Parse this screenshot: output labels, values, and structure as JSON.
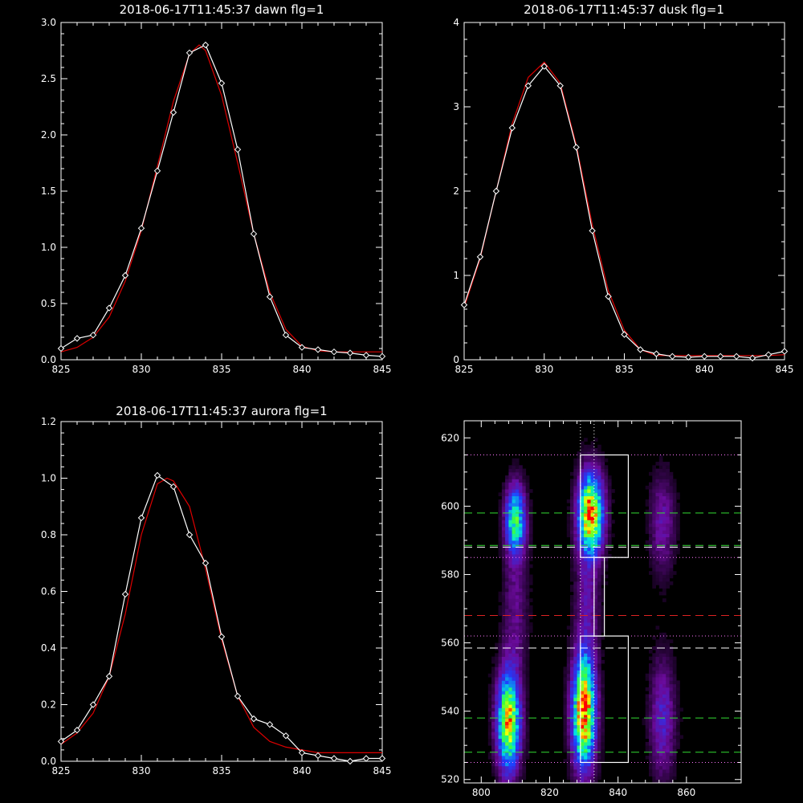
{
  "chart_data": [
    {
      "id": "dawn",
      "type": "line",
      "title": "2018-06-17T11:45:37 dawn flg=1",
      "xlim": [
        825,
        845
      ],
      "ylim": [
        0,
        3.0
      ],
      "xticks": [
        825,
        830,
        835,
        840,
        845
      ],
      "yticks": [
        "0.0",
        "0.5",
        "1.0",
        "1.5",
        "2.0",
        "2.5",
        "3.0"
      ],
      "series": [
        {
          "color": "#ffffff",
          "markers": true,
          "x": [
            825,
            826,
            827,
            828,
            829,
            830,
            831,
            832,
            833,
            834,
            835,
            836,
            837,
            838,
            839,
            840,
            841,
            842,
            843,
            844,
            845
          ],
          "y": [
            0.1,
            0.19,
            0.22,
            0.46,
            0.75,
            1.17,
            1.68,
            2.2,
            2.73,
            2.8,
            2.46,
            1.87,
            1.12,
            0.56,
            0.22,
            0.11,
            0.09,
            0.07,
            0.06,
            0.04,
            0.03
          ]
        },
        {
          "color": "#dd0000",
          "markers": false,
          "x": [
            825,
            826,
            827,
            828,
            829,
            830,
            831,
            832,
            833,
            833.6,
            834,
            835,
            836,
            837,
            838,
            839,
            840,
            841,
            842,
            843,
            844,
            845
          ],
          "y": [
            0.07,
            0.11,
            0.2,
            0.38,
            0.7,
            1.15,
            1.72,
            2.3,
            2.72,
            2.8,
            2.75,
            2.35,
            1.75,
            1.12,
            0.6,
            0.27,
            0.12,
            0.08,
            0.07,
            0.07,
            0.07,
            0.07
          ]
        }
      ]
    },
    {
      "id": "dusk",
      "type": "line",
      "title": "2018-06-17T11:45:37 dusk flg=1",
      "xlim": [
        825,
        845
      ],
      "ylim": [
        0,
        4
      ],
      "xticks": [
        825,
        830,
        835,
        840,
        845
      ],
      "yticks": [
        "0",
        "1",
        "2",
        "3",
        "4"
      ],
      "series": [
        {
          "color": "#ffffff",
          "markers": true,
          "x": [
            825,
            826,
            827,
            828,
            829,
            830,
            831,
            832,
            833,
            834,
            835,
            836,
            837,
            838,
            839,
            840,
            841,
            842,
            843,
            844,
            845
          ],
          "y": [
            0.65,
            1.22,
            2.0,
            2.75,
            3.25,
            3.48,
            3.25,
            2.52,
            1.53,
            0.75,
            0.3,
            0.12,
            0.07,
            0.04,
            0.03,
            0.04,
            0.04,
            0.04,
            0.02,
            0.06,
            0.1
          ]
        },
        {
          "color": "#dd0000",
          "markers": false,
          "x": [
            825,
            826,
            827,
            828,
            829,
            830,
            831,
            832,
            833,
            834,
            835,
            836,
            837,
            838,
            839,
            840,
            841,
            842,
            843,
            844,
            845
          ],
          "y": [
            0.62,
            1.2,
            2.0,
            2.8,
            3.35,
            3.53,
            3.28,
            2.55,
            1.6,
            0.82,
            0.35,
            0.12,
            0.05,
            0.05,
            0.05,
            0.05,
            0.05,
            0.05,
            0.05,
            0.05,
            0.06
          ]
        }
      ]
    },
    {
      "id": "aurora",
      "type": "line",
      "title": "2018-06-17T11:45:37 aurora flg=1",
      "xlim": [
        825,
        845
      ],
      "ylim": [
        0,
        1.2
      ],
      "xticks": [
        825,
        830,
        835,
        840,
        845
      ],
      "yticks": [
        "0.0",
        "0.2",
        "0.4",
        "0.6",
        "0.8",
        "1.0",
        "1.2"
      ],
      "series": [
        {
          "color": "#ffffff",
          "markers": true,
          "x": [
            825,
            826,
            827,
            828,
            829,
            830,
            831,
            832,
            833,
            834,
            835,
            836,
            837,
            838,
            839,
            840,
            841,
            842,
            843,
            844,
            845
          ],
          "y": [
            0.07,
            0.11,
            0.2,
            0.3,
            0.59,
            0.86,
            1.01,
            0.97,
            0.8,
            0.7,
            0.44,
            0.23,
            0.15,
            0.13,
            0.09,
            0.03,
            0.02,
            0.01,
            0.0,
            0.01,
            0.01
          ]
        },
        {
          "color": "#dd0000",
          "markers": false,
          "x": [
            825,
            826,
            827,
            828,
            829,
            830,
            831,
            831.6,
            832,
            833,
            834,
            835,
            836,
            837,
            838,
            839,
            840,
            841,
            842,
            843,
            844,
            845
          ],
          "y": [
            0.06,
            0.1,
            0.17,
            0.3,
            0.52,
            0.8,
            0.98,
            1.0,
            0.99,
            0.9,
            0.68,
            0.43,
            0.23,
            0.12,
            0.07,
            0.05,
            0.04,
            0.03,
            0.03,
            0.03,
            0.03,
            0.03
          ]
        }
      ]
    },
    {
      "id": "image",
      "type": "heatmap",
      "xlim": [
        795,
        876
      ],
      "ylim": [
        519,
        625
      ],
      "xticks": [
        800,
        820,
        840,
        860
      ],
      "yticks": [
        520,
        540,
        560,
        580,
        600,
        620
      ],
      "colors": {
        "low": "#000000",
        "purple": "#6a0a9a",
        "blue": "#1f3cff",
        "cyan": "#00e5e0",
        "green": "#3cff3c",
        "yellow": "#ffff00",
        "red": "#ff0000"
      },
      "blobs": [
        {
          "x": 810,
          "y": 596,
          "sx": 2.0,
          "sy": 7,
          "amp": 0.62
        },
        {
          "x": 808,
          "y": 537,
          "sx": 2.3,
          "sy": 10,
          "amp": 0.85
        },
        {
          "x": 832,
          "y": 598,
          "sx": 2.5,
          "sy": 8,
          "amp": 0.95
        },
        {
          "x": 830,
          "y": 540,
          "sx": 2.3,
          "sy": 11,
          "amp": 1.0
        },
        {
          "x": 853,
          "y": 595,
          "sx": 2.5,
          "sy": 10,
          "amp": 0.2
        },
        {
          "x": 853,
          "y": 538,
          "sx": 2.5,
          "sy": 12,
          "amp": 0.25
        },
        {
          "x": 831,
          "y": 572,
          "sx": 2.5,
          "sy": 12,
          "amp": 0.18
        },
        {
          "x": 810,
          "y": 570,
          "sx": 2.5,
          "sy": 14,
          "amp": 0.15
        }
      ],
      "hlines": [
        {
          "y": 598,
          "color": "#33dd33",
          "style": "dashed"
        },
        {
          "y": 588.5,
          "color": "#33dd33",
          "style": "dashed"
        },
        {
          "y": 588,
          "color": "#ffffff",
          "style": "dashed"
        },
        {
          "y": 568,
          "color": "#dd2222",
          "style": "dashed"
        },
        {
          "y": 558.5,
          "color": "#ffffff",
          "style": "dashed"
        },
        {
          "y": 538,
          "color": "#33dd33",
          "style": "dashed"
        },
        {
          "y": 528,
          "color": "#33dd33",
          "style": "dashed"
        },
        {
          "y": 615,
          "color": "#ff77ff",
          "style": "dotted"
        },
        {
          "y": 585,
          "color": "#ff77ff",
          "style": "dotted"
        },
        {
          "y": 562,
          "color": "#ff77ff",
          "style": "dotted"
        },
        {
          "y": 525,
          "color": "#ff77ff",
          "style": "dotted"
        }
      ],
      "vlines": [
        {
          "x": 829,
          "color": "#ffffff",
          "style": "dotted"
        },
        {
          "x": 833,
          "color": "#ffffff",
          "style": "dotted"
        }
      ],
      "boxes": [
        {
          "x0": 829,
          "x1": 843,
          "y0": 585,
          "y1": 615
        },
        {
          "x0": 829,
          "x1": 843,
          "y0": 525,
          "y1": 562
        }
      ],
      "connector": {
        "x0": 833,
        "x1": 836,
        "y0": 562,
        "y1": 585
      }
    }
  ]
}
